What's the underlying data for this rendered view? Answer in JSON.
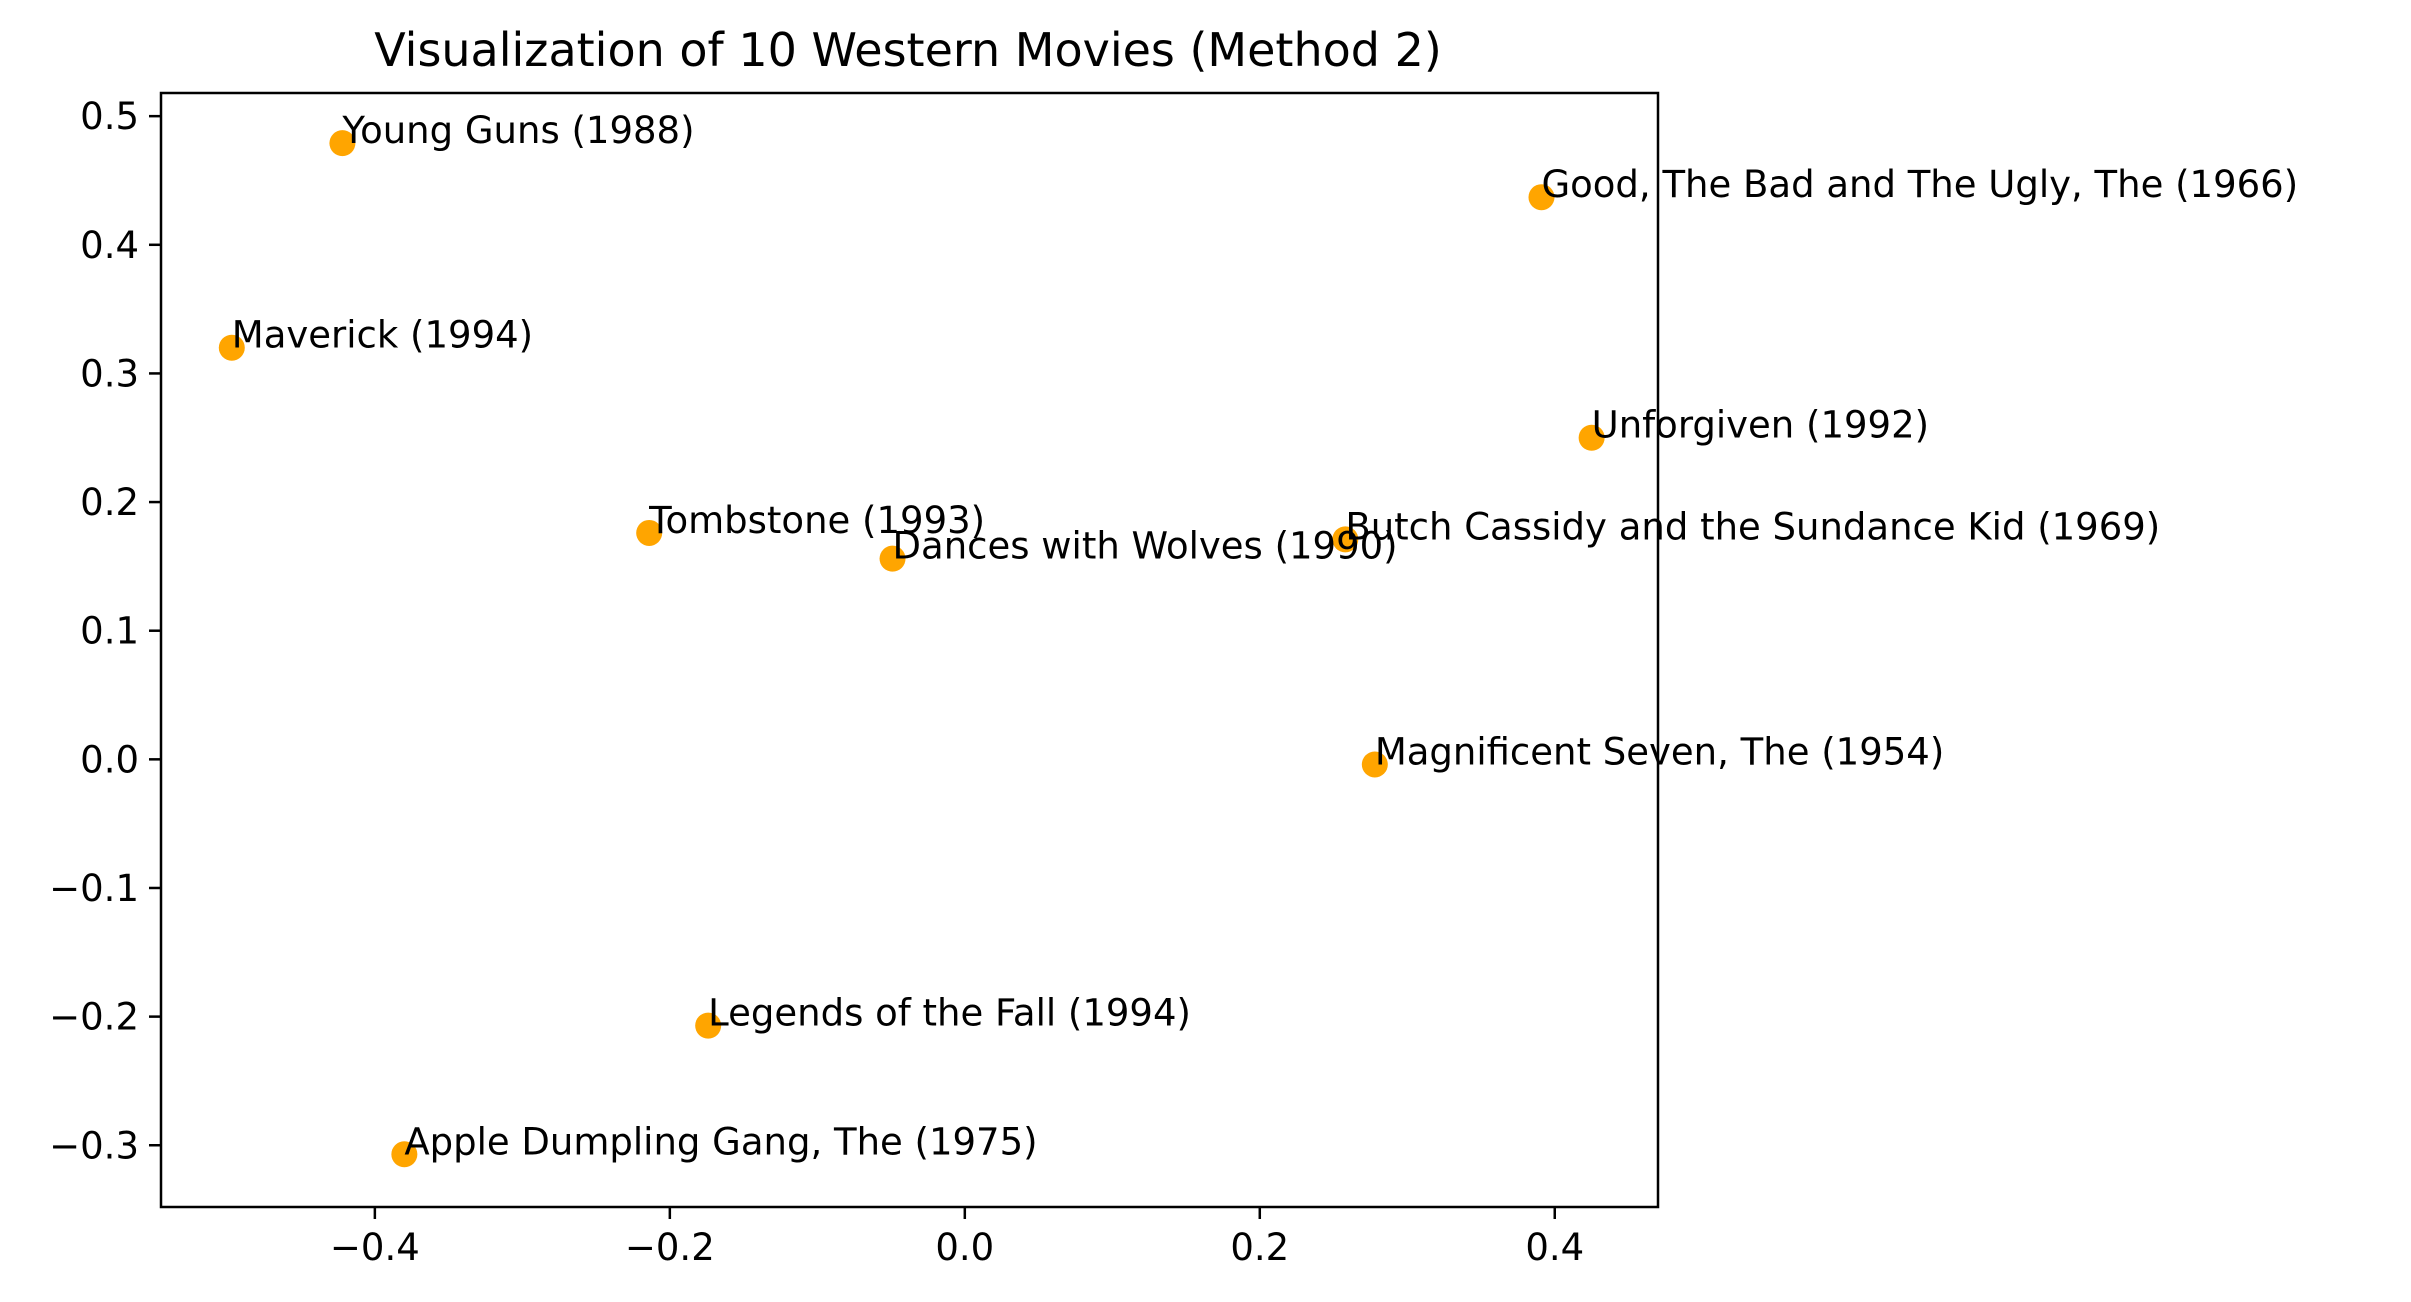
{
  "chart_data": {
    "type": "scatter",
    "title": "Visualization of 10 Western Movies (Method 2)",
    "xlabel": "",
    "ylabel": "",
    "xlim": [
      -0.545,
      0.47
    ],
    "ylim": [
      -0.348,
      0.518
    ],
    "xticks": [
      -0.4,
      -0.2,
      0.0,
      0.2,
      0.4
    ],
    "xtick_labels": [
      "−0.4",
      "−0.2",
      "0.0",
      "0.2",
      "0.4"
    ],
    "yticks": [
      -0.3,
      -0.2,
      -0.1,
      0.0,
      0.1,
      0.2,
      0.3,
      0.4,
      0.5
    ],
    "ytick_labels": [
      "−0.3",
      "−0.2",
      "−0.1",
      "0.0",
      "0.1",
      "0.2",
      "0.3",
      "0.4",
      "0.5"
    ],
    "grid": false,
    "marker_color": "#FFA500",
    "points": [
      {
        "label": "Young Guns (1988)",
        "x": -0.422,
        "y": 0.479
      },
      {
        "label": "Good, The Bad and The Ugly, The (1966)",
        "x": 0.391,
        "y": 0.437
      },
      {
        "label": "Maverick (1994)",
        "x": -0.497,
        "y": 0.32
      },
      {
        "label": "Unforgiven (1992)",
        "x": 0.425,
        "y": 0.25
      },
      {
        "label": "Tombstone (1993)",
        "x": -0.214,
        "y": 0.176
      },
      {
        "label": "Butch Cassidy and the Sundance Kid (1969)",
        "x": 0.258,
        "y": 0.171
      },
      {
        "label": "Dances with Wolves (1990)",
        "x": -0.049,
        "y": 0.156
      },
      {
        "label": "Magnificent Seven, The (1954)",
        "x": 0.278,
        "y": -0.004
      },
      {
        "label": "Legends of the Fall (1994)",
        "x": -0.174,
        "y": -0.207
      },
      {
        "label": "Apple Dumpling Gang, The (1975)",
        "x": -0.38,
        "y": -0.307
      }
    ]
  }
}
